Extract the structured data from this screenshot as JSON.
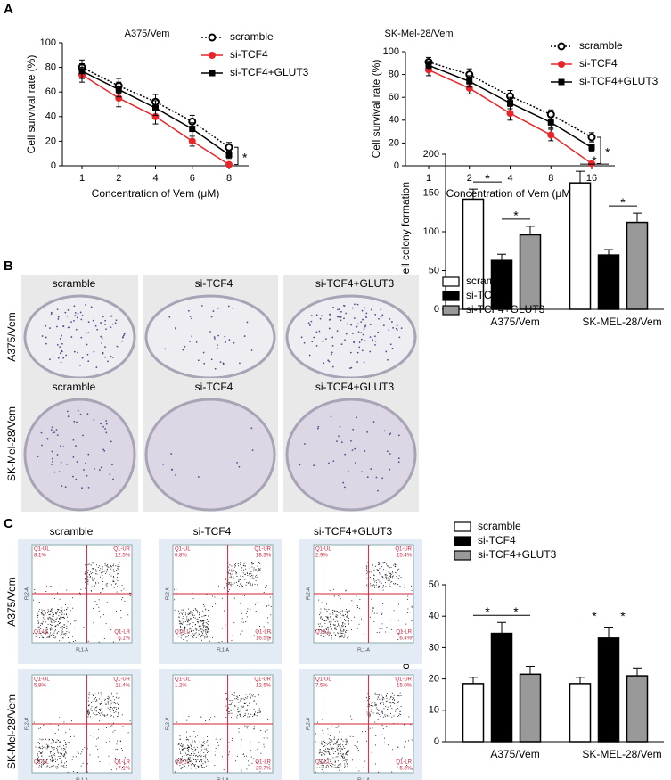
{
  "panels": [
    "A",
    "B",
    "C"
  ],
  "chart_data": [
    {
      "type": "line",
      "title": "A375/Vem",
      "x_label": "Concentration of Vem (μM)",
      "y_label": "Cell survival rate (%)",
      "categories": [
        "1",
        "2",
        "4",
        "6",
        "8"
      ],
      "ylim": [
        0,
        100
      ],
      "yticks": [
        0,
        20,
        40,
        60,
        80,
        100
      ],
      "series": [
        {
          "name": "scramble",
          "color": "#000000",
          "marker": "open-circle",
          "dashed": true,
          "values": [
            80,
            65,
            52,
            36,
            15
          ],
          "errors": [
            6,
            6,
            6,
            5,
            4
          ]
        },
        {
          "name": "si-TCF4",
          "color": "#e8262a",
          "marker": "circle",
          "dashed": false,
          "values": [
            74,
            55,
            40,
            20,
            1
          ],
          "errors": [
            6,
            7,
            6,
            4,
            1
          ]
        },
        {
          "name": "si-TCF4+GLUT3",
          "color": "#000000",
          "marker": "square",
          "dashed": false,
          "values": [
            77,
            62,
            47,
            30,
            9
          ],
          "errors": [
            6,
            6,
            6,
            5,
            3
          ]
        }
      ],
      "annotation": "*"
    },
    {
      "type": "line",
      "title": "SK-Mel-28/Vem",
      "x_label": "Concentration of Vem (μM)",
      "y_label": "Cell survival rate (%)",
      "categories": [
        "1",
        "2",
        "4",
        "8",
        "16"
      ],
      "ylim": [
        0,
        100
      ],
      "yticks": [
        0,
        20,
        40,
        60,
        80,
        100
      ],
      "series": [
        {
          "name": "scramble",
          "color": "#000000",
          "marker": "open-circle",
          "dashed": true,
          "values": [
            91,
            80,
            61,
            45,
            25
          ],
          "errors": [
            4,
            5,
            5,
            4,
            4
          ]
        },
        {
          "name": "si-TCF4",
          "color": "#e8262a",
          "marker": "circle",
          "dashed": false,
          "values": [
            84,
            68,
            46,
            27,
            2
          ],
          "errors": [
            5,
            5,
            6,
            5,
            1
          ]
        },
        {
          "name": "si-TCF4+GLUT3",
          "color": "#000000",
          "marker": "square",
          "dashed": false,
          "values": [
            88,
            74,
            55,
            38,
            16
          ],
          "errors": [
            4,
            5,
            5,
            5,
            3
          ]
        }
      ],
      "annotation": "*"
    },
    {
      "type": "bar",
      "y_label": "Cell colony formation",
      "categories": [
        "A375/Vem",
        "SK-MEL-28/Vem"
      ],
      "ylim": [
        0,
        200
      ],
      "yticks": [
        0,
        50,
        100,
        150,
        200
      ],
      "series": [
        {
          "name": "scramble",
          "color": "#ffffff",
          "values": [
            142,
            163
          ],
          "errors": [
            13,
            15
          ]
        },
        {
          "name": "si-TCF4",
          "color": "#000000",
          "values": [
            63,
            70
          ],
          "errors": [
            8,
            7
          ]
        },
        {
          "name": "si-TCF4+GLUT3",
          "color": "#999999",
          "values": [
            96,
            112
          ],
          "errors": [
            11,
            12
          ]
        }
      ],
      "annotations": [
        "*",
        "*",
        "*",
        "*"
      ]
    },
    {
      "type": "bar",
      "y_label": "Cell apoptosis rate (%)",
      "categories": [
        "A375/Vem",
        "SK-MEL-28/Vem"
      ],
      "ylim": [
        0,
        50
      ],
      "yticks": [
        0,
        10,
        20,
        30,
        40,
        50
      ],
      "series": [
        {
          "name": "scramble",
          "color": "#ffffff",
          "values": [
            18.5,
            18.5
          ],
          "errors": [
            2,
            2
          ]
        },
        {
          "name": "si-TCF4",
          "color": "#000000",
          "values": [
            34.5,
            33
          ],
          "errors": [
            3.5,
            3.5
          ]
        },
        {
          "name": "si-TCF4+GLUT3",
          "color": "#999999",
          "values": [
            21.5,
            21
          ],
          "errors": [
            2.5,
            2.5
          ]
        }
      ],
      "annotations": [
        "*",
        "*",
        "*",
        "*"
      ]
    }
  ],
  "colony": {
    "rows": [
      {
        "label": "A375/Vem",
        "columns": [
          "scramble",
          "si-TCF4",
          "si-TCF4+GLUT3"
        ]
      },
      {
        "label": "SK-Mel-28/Vem",
        "columns": [
          "scramble",
          "si-TCF4",
          "si-TCF4+GLUT3"
        ]
      }
    ]
  },
  "flow": {
    "columns": [
      "scramble",
      "si-TCF4",
      "si-TCF4+GLUT3"
    ],
    "x_label": "FL1-A",
    "y_label": "FL2-A",
    "quadrants": [
      "Q1-UL",
      "Q1-UR",
      "Q1-LL",
      "Q1-LR"
    ],
    "rows": [
      {
        "label": "A375/Vem",
        "plots": [
          {
            "UL": "8.1%",
            "UR": "12.5%",
            "LR": "6.1%"
          },
          {
            "UL": "0.8%",
            "UR": "18.3%",
            "LR": "16.5%"
          },
          {
            "UL": "2.9%",
            "UR": "15.4%",
            "LR": "6.4%"
          }
        ]
      },
      {
        "label": "SK-Mel-28/Vem",
        "plots": [
          {
            "UL": "5.8%",
            "UR": "11.4%",
            "LR": "7.1%"
          },
          {
            "UL": "1.2%",
            "UR": "12.5%",
            "LR": "20.7%"
          },
          {
            "UL": "7.5%",
            "UR": "15.0%",
            "LR": "6.3%"
          }
        ]
      }
    ]
  }
}
